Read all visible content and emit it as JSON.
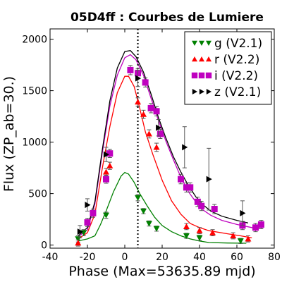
{
  "chart_data": {
    "type": "scatter",
    "title": "05D4ff : Courbes de Lumiere",
    "xlabel": "Phase (Max=53635.89 mjd)",
    "ylabel": "Flux (ZP_ab=30.)",
    "xlim": [
      -40,
      80
    ],
    "ylim": [
      -30,
      2100
    ],
    "xticks": [
      -40,
      -20,
      0,
      20,
      40,
      60,
      80
    ],
    "yticks": [
      0,
      500,
      1000,
      1500,
      2000
    ],
    "vline_x": 7,
    "legend_position": "top-right",
    "series": [
      {
        "name": "g (V2.1)",
        "color": "#008000",
        "marker": "triangle-down",
        "points": [
          {
            "x": -25,
            "y": 60,
            "err": 30
          },
          {
            "x": -22,
            "y": 120,
            "err": 30
          },
          {
            "x": -10,
            "y": 290,
            "err": 30
          },
          {
            "x": 7,
            "y": 460,
            "err": 30
          },
          {
            "x": 10,
            "y": 330,
            "err": 25
          },
          {
            "x": 13,
            "y": 210,
            "err": 25
          },
          {
            "x": 17,
            "y": 160,
            "err": 25
          },
          {
            "x": 33,
            "y": 90,
            "err": 25
          },
          {
            "x": 40,
            "y": 70,
            "err": 25
          },
          {
            "x": 62,
            "y": 40,
            "err": 25
          }
        ],
        "curve": [
          {
            "x": -25,
            "y": 40
          },
          {
            "x": -20,
            "y": 60
          },
          {
            "x": -16,
            "y": 90
          },
          {
            "x": -13,
            "y": 200
          },
          {
            "x": -10,
            "y": 330
          },
          {
            "x": -6,
            "y": 520
          },
          {
            "x": -2,
            "y": 670
          },
          {
            "x": 0,
            "y": 705
          },
          {
            "x": 2,
            "y": 690
          },
          {
            "x": 5,
            "y": 610
          },
          {
            "x": 8,
            "y": 500
          },
          {
            "x": 12,
            "y": 380
          },
          {
            "x": 16,
            "y": 270
          },
          {
            "x": 20,
            "y": 190
          },
          {
            "x": 25,
            "y": 130
          },
          {
            "x": 30,
            "y": 90
          },
          {
            "x": 35,
            "y": 60
          },
          {
            "x": 40,
            "y": 40
          },
          {
            "x": 45,
            "y": 25
          },
          {
            "x": 55,
            "y": 20
          },
          {
            "x": 65,
            "y": 18
          }
        ]
      },
      {
        "name": "r (V2.2)",
        "color": "#ff0000",
        "marker": "triangle-up",
        "points": [
          {
            "x": -25,
            "y": 20,
            "err": 30
          },
          {
            "x": -10,
            "y": 710,
            "err": 35
          },
          {
            "x": -8,
            "y": 770,
            "err": 35
          },
          {
            "x": 7,
            "y": 1390,
            "err": 40
          },
          {
            "x": 10,
            "y": 1270,
            "err": 40
          },
          {
            "x": 13,
            "y": 1080,
            "err": 40
          },
          {
            "x": 17,
            "y": 950,
            "err": 40
          },
          {
            "x": 33,
            "y": 180,
            "err": 30
          },
          {
            "x": 40,
            "y": 140,
            "err": 30
          },
          {
            "x": 47,
            "y": 120,
            "err": 30
          },
          {
            "x": 58,
            "y": 90,
            "err": 30
          },
          {
            "x": 66,
            "y": 60,
            "err": 30
          }
        ],
        "curve": [
          {
            "x": -25,
            "y": 60
          },
          {
            "x": -20,
            "y": 120
          },
          {
            "x": -16,
            "y": 300
          },
          {
            "x": -12,
            "y": 750
          },
          {
            "x": -8,
            "y": 1150
          },
          {
            "x": -4,
            "y": 1480
          },
          {
            "x": 0,
            "y": 1640
          },
          {
            "x": 2,
            "y": 1640
          },
          {
            "x": 5,
            "y": 1540
          },
          {
            "x": 8,
            "y": 1330
          },
          {
            "x": 11,
            "y": 1100
          },
          {
            "x": 15,
            "y": 880
          },
          {
            "x": 20,
            "y": 630
          },
          {
            "x": 25,
            "y": 430
          },
          {
            "x": 30,
            "y": 300
          },
          {
            "x": 35,
            "y": 210
          },
          {
            "x": 40,
            "y": 170
          },
          {
            "x": 45,
            "y": 140
          },
          {
            "x": 55,
            "y": 110
          },
          {
            "x": 62,
            "y": 90
          },
          {
            "x": 68,
            "y": 70
          }
        ]
      },
      {
        "name": "i (V2.2)",
        "color": "#bf00bf",
        "marker": "square",
        "points": [
          {
            "x": -20,
            "y": 220,
            "err": 40
          },
          {
            "x": -17,
            "y": 310,
            "err": 40
          },
          {
            "x": -10,
            "y": 640,
            "err": 40
          },
          {
            "x": -8,
            "y": 890,
            "err": 40
          },
          {
            "x": 3,
            "y": 1700,
            "err": 45
          },
          {
            "x": 7,
            "y": 1670,
            "err": 45
          },
          {
            "x": 11,
            "y": 1580,
            "err": 45
          },
          {
            "x": 14,
            "y": 1330,
            "err": 45
          },
          {
            "x": 17,
            "y": 1300,
            "err": 45
          },
          {
            "x": 19,
            "y": 1080,
            "err": 45
          },
          {
            "x": 30,
            "y": 640,
            "err": 45
          },
          {
            "x": 33,
            "y": 560,
            "err": 45
          },
          {
            "x": 35,
            "y": 560,
            "err": 45
          },
          {
            "x": 39,
            "y": 420,
            "err": 45
          },
          {
            "x": 41,
            "y": 380,
            "err": 45
          },
          {
            "x": 48,
            "y": 350,
            "err": 45
          },
          {
            "x": 63,
            "y": 190,
            "err": 40
          },
          {
            "x": 70,
            "y": 170,
            "err": 40
          },
          {
            "x": 73,
            "y": 200,
            "err": 40
          }
        ],
        "curve": [
          {
            "x": -25,
            "y": 80
          },
          {
            "x": -20,
            "y": 150
          },
          {
            "x": -16,
            "y": 400
          },
          {
            "x": -12,
            "y": 900
          },
          {
            "x": -8,
            "y": 1350
          },
          {
            "x": -4,
            "y": 1650
          },
          {
            "x": 0,
            "y": 1820
          },
          {
            "x": 3,
            "y": 1850
          },
          {
            "x": 6,
            "y": 1800
          },
          {
            "x": 10,
            "y": 1650
          },
          {
            "x": 14,
            "y": 1430
          },
          {
            "x": 18,
            "y": 1210
          },
          {
            "x": 22,
            "y": 1010
          },
          {
            "x": 26,
            "y": 830
          },
          {
            "x": 30,
            "y": 660
          },
          {
            "x": 34,
            "y": 520
          },
          {
            "x": 38,
            "y": 420
          },
          {
            "x": 42,
            "y": 340
          },
          {
            "x": 46,
            "y": 290
          },
          {
            "x": 52,
            "y": 240
          },
          {
            "x": 60,
            "y": 200
          },
          {
            "x": 68,
            "y": 170
          },
          {
            "x": 74,
            "y": 160
          }
        ]
      },
      {
        "name": "z (V2.1)",
        "color": "#000000",
        "marker": "triangle-right",
        "points": [
          {
            "x": -24,
            "y": 130,
            "err": 60
          },
          {
            "x": -20,
            "y": 390,
            "err": 60
          },
          {
            "x": -10,
            "y": 880,
            "err": 70
          },
          {
            "x": 7,
            "y": 1620,
            "err": 80
          },
          {
            "x": 18,
            "y": 1140,
            "err": 80
          },
          {
            "x": 32,
            "y": 950,
            "err": 200
          },
          {
            "x": 45,
            "y": 640,
            "err": 300
          },
          {
            "x": 63,
            "y": 310,
            "err": 120
          }
        ],
        "curve": [
          {
            "x": -25,
            "y": 90
          },
          {
            "x": -20,
            "y": 170
          },
          {
            "x": -16,
            "y": 420
          },
          {
            "x": -12,
            "y": 930
          },
          {
            "x": -8,
            "y": 1400
          },
          {
            "x": -4,
            "y": 1720
          },
          {
            "x": 0,
            "y": 1880
          },
          {
            "x": 3,
            "y": 1890
          },
          {
            "x": 6,
            "y": 1830
          },
          {
            "x": 10,
            "y": 1680
          },
          {
            "x": 14,
            "y": 1470
          },
          {
            "x": 18,
            "y": 1240
          },
          {
            "x": 22,
            "y": 1040
          },
          {
            "x": 26,
            "y": 860
          },
          {
            "x": 30,
            "y": 710
          },
          {
            "x": 34,
            "y": 580
          },
          {
            "x": 38,
            "y": 470
          },
          {
            "x": 42,
            "y": 390
          },
          {
            "x": 46,
            "y": 330
          },
          {
            "x": 52,
            "y": 280
          },
          {
            "x": 60,
            "y": 240
          },
          {
            "x": 66,
            "y": 215
          }
        ]
      }
    ]
  }
}
